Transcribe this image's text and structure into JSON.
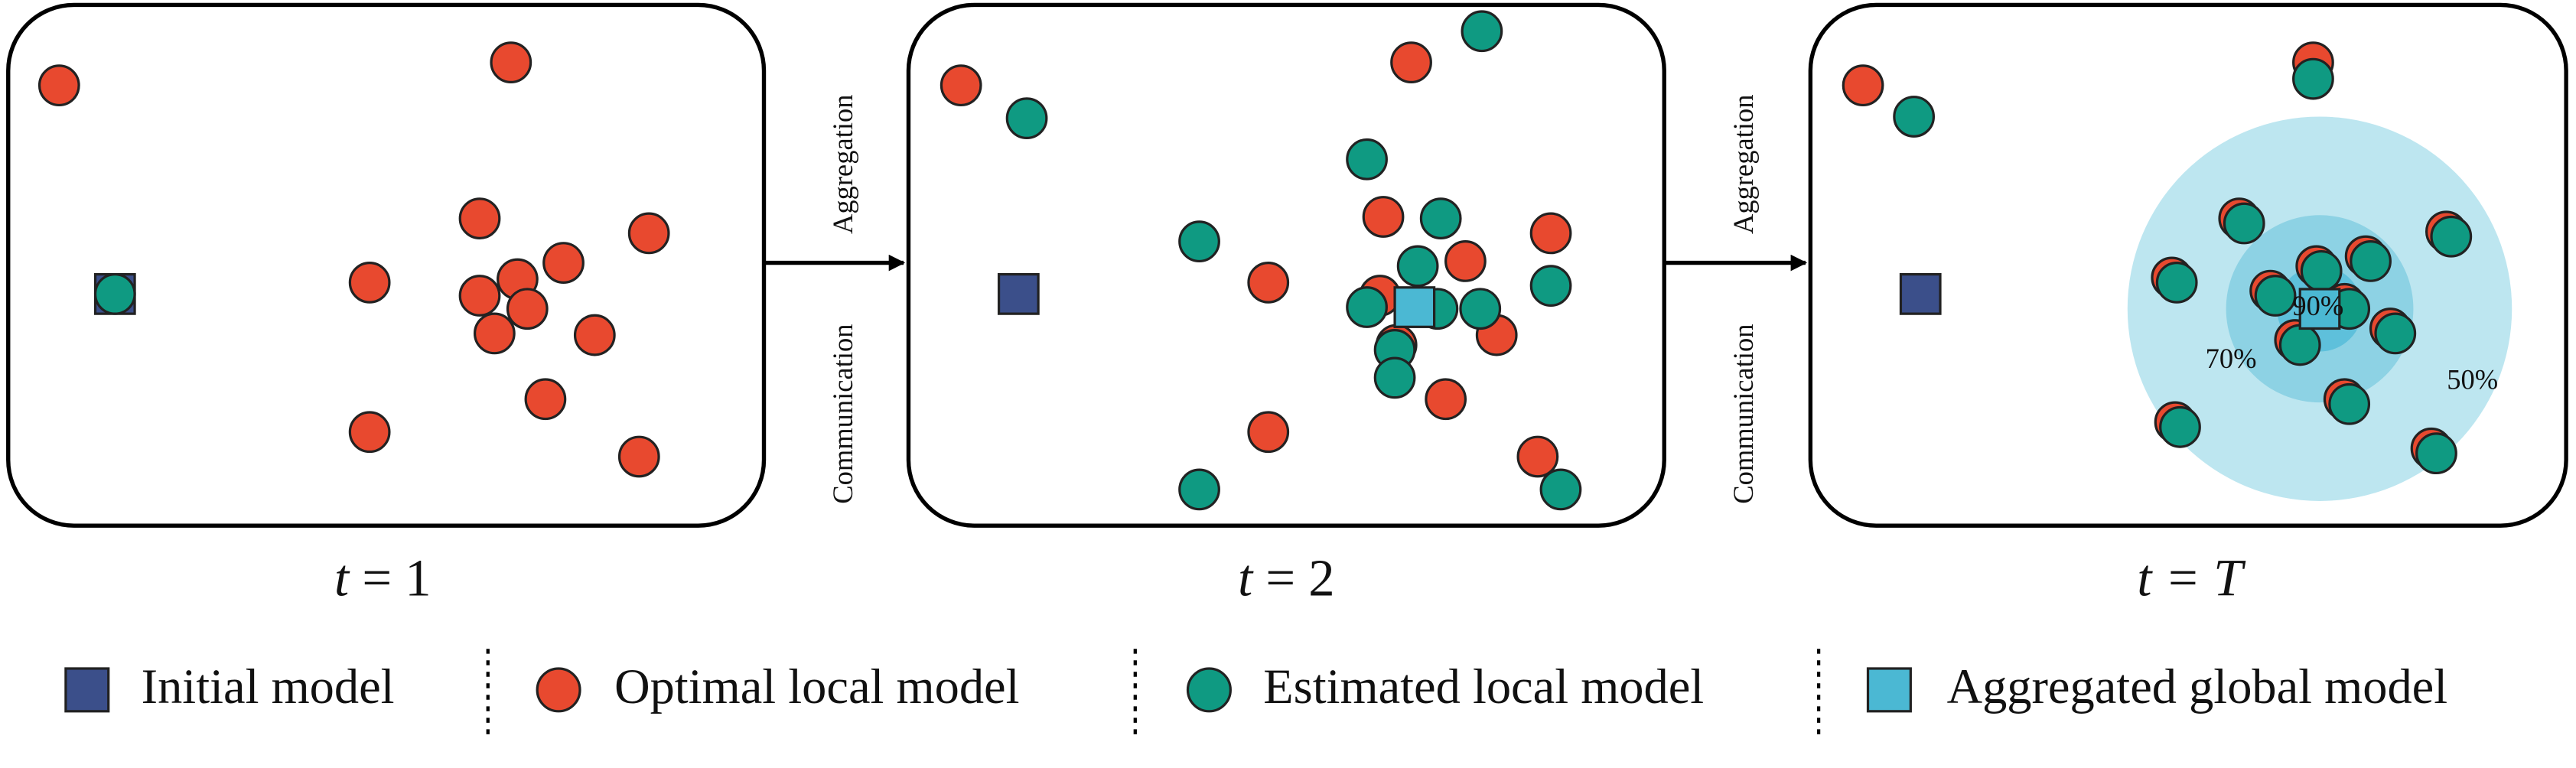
{
  "panels": [
    {
      "label": {
        "symbol": "t",
        "rest": "= 1"
      }
    },
    {
      "label": {
        "symbol": "t",
        "rest": "= 2"
      }
    },
    {
      "label": {
        "symbol": "t",
        "rest": "= T"
      },
      "rings": [
        "90%",
        "70%",
        "50%"
      ]
    }
  ],
  "arrows": [
    {
      "top": "Aggregation",
      "bottom": "Communication"
    },
    {
      "top": "Aggregation",
      "bottom": "Communication"
    }
  ],
  "legend": [
    "Initial model",
    "Optimal local model",
    "Estimated local model",
    "Aggregated global model"
  ]
}
